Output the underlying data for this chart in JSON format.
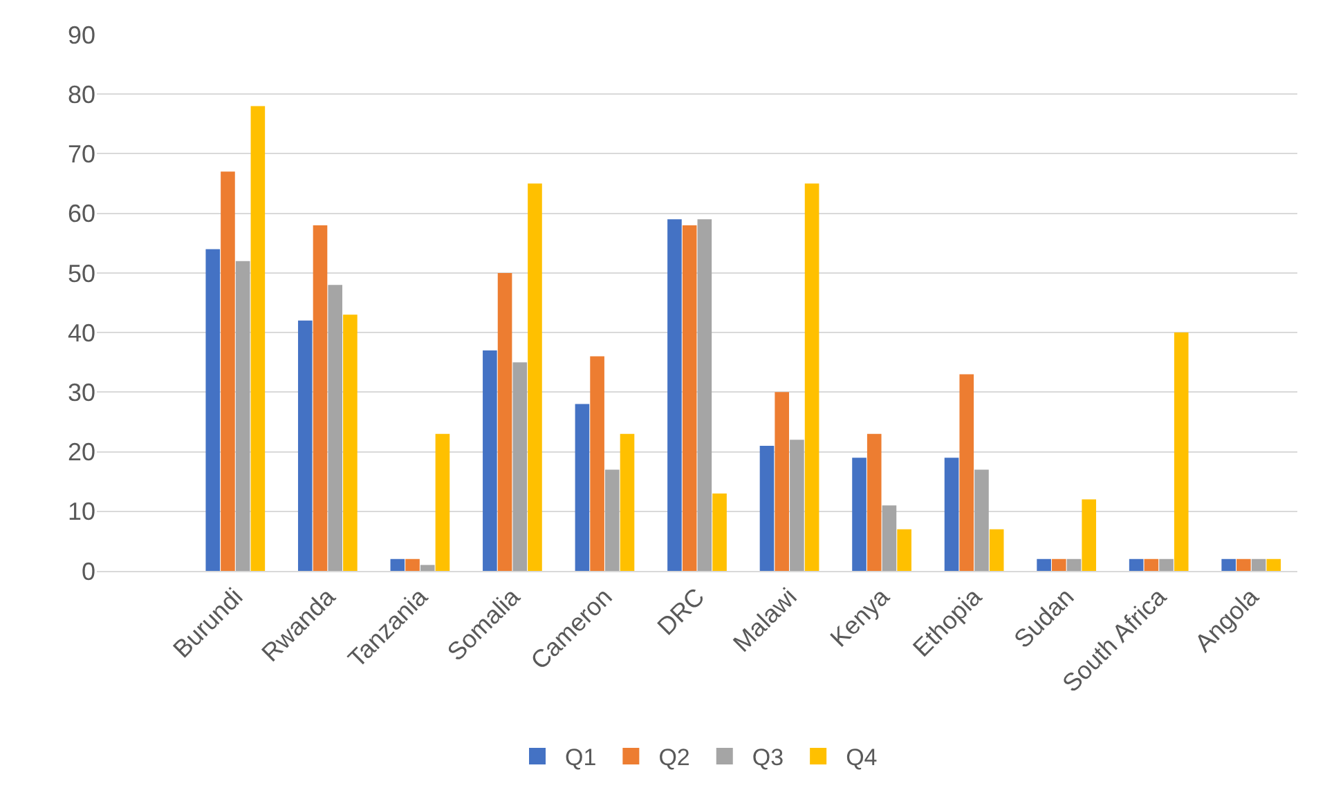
{
  "chart_data": {
    "type": "bar",
    "categories": [
      null,
      "Burundi",
      "Rwanda",
      "Tanzania",
      "Somalia",
      "Cameron",
      "DRC",
      "Malawi",
      "Kenya",
      "Ethopia",
      "Sudan",
      "South Africa",
      "Angola"
    ],
    "series": [
      {
        "name": "Q1",
        "color": "#4472c4",
        "values": [
          null,
          54,
          42,
          2,
          37,
          28,
          59,
          21,
          19,
          19,
          2,
          2,
          2
        ]
      },
      {
        "name": "Q2",
        "color": "#ed7d31",
        "values": [
          null,
          67,
          58,
          2,
          50,
          36,
          58,
          30,
          23,
          33,
          2,
          2,
          2
        ]
      },
      {
        "name": "Q3",
        "color": "#a5a5a5",
        "values": [
          null,
          52,
          48,
          1,
          35,
          17,
          59,
          22,
          11,
          17,
          2,
          2,
          2
        ]
      },
      {
        "name": "Q4",
        "color": "#ffc000",
        "values": [
          null,
          78,
          43,
          23,
          65,
          23,
          13,
          65,
          7,
          7,
          12,
          40,
          2
        ]
      }
    ],
    "ylim": [
      0,
      90
    ],
    "yticks": [
      0,
      10,
      20,
      30,
      40,
      50,
      60,
      70,
      80,
      90
    ],
    "grid": "y",
    "legend": "bottom"
  }
}
